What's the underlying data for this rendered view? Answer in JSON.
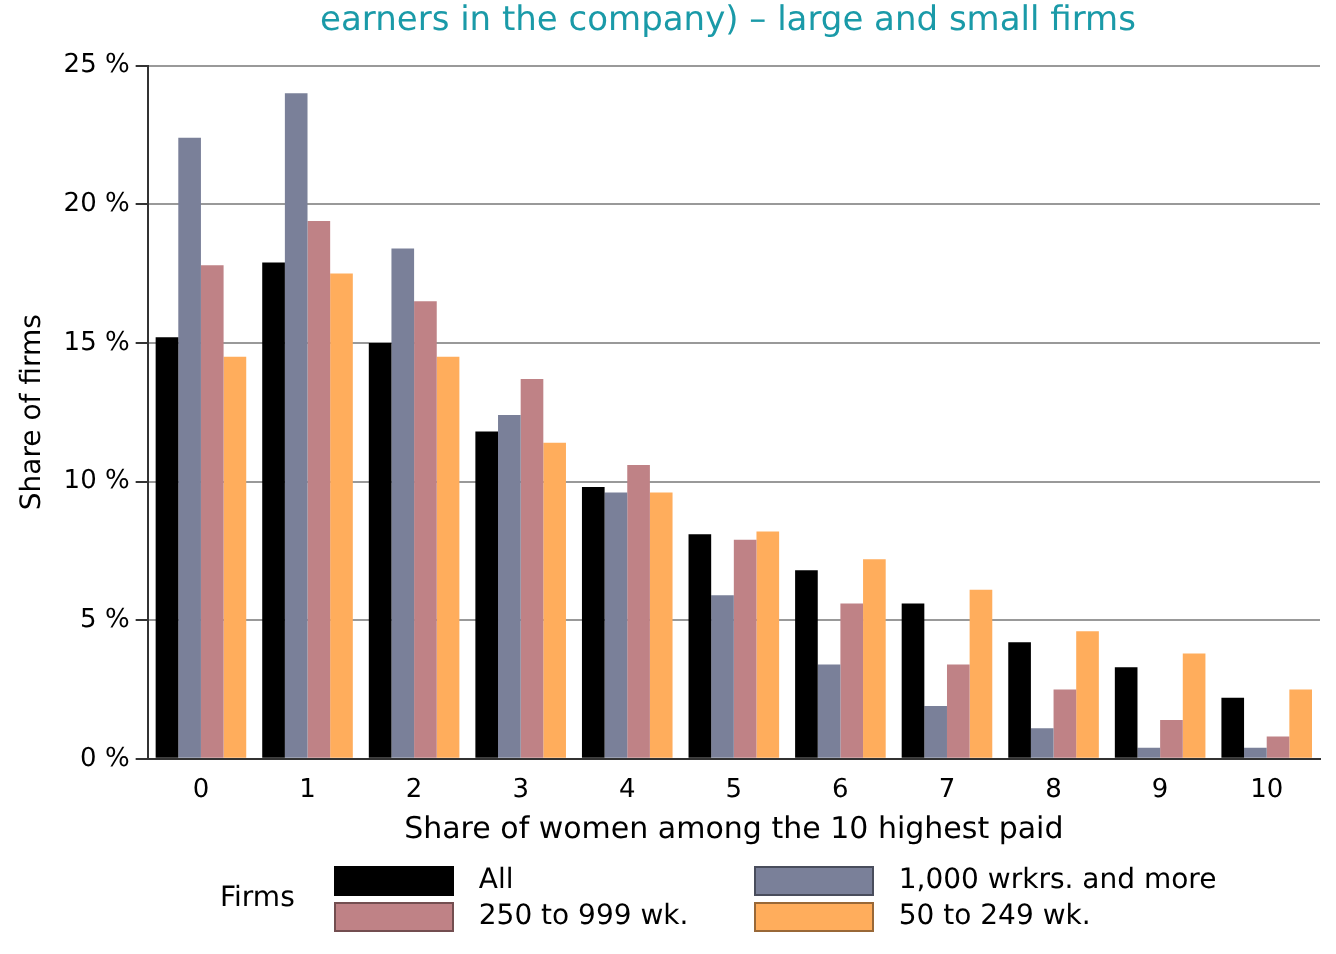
{
  "chart_data": {
    "type": "bar",
    "title": "earners in the company) – large and small firms",
    "xlabel": "Share of women among the 10 highest paid",
    "ylabel": "Share of firms",
    "legend_title": "Firms",
    "categories": [
      "0",
      "1",
      "2",
      "3",
      "4",
      "5",
      "6",
      "7",
      "8",
      "9",
      "10"
    ],
    "series": [
      {
        "name": "All",
        "color": "#000000",
        "values": [
          15.2,
          17.9,
          15.0,
          11.8,
          9.8,
          8.1,
          6.8,
          5.6,
          4.2,
          3.3,
          2.2
        ]
      },
      {
        "name": "1,000 wrkrs. and more",
        "color": "#7a8099",
        "values": [
          22.4,
          24.0,
          18.4,
          12.4,
          9.6,
          5.9,
          3.4,
          1.9,
          1.1,
          0.4,
          0.4
        ]
      },
      {
        "name": "250 to 999 wk.",
        "color": "#bf8286",
        "values": [
          17.8,
          19.4,
          16.5,
          13.7,
          10.6,
          7.9,
          5.6,
          3.4,
          2.5,
          1.4,
          0.8
        ]
      },
      {
        "name": "50 to 249 wk.",
        "color": "#ffad5c",
        "values": [
          14.5,
          17.5,
          14.5,
          11.4,
          9.6,
          8.2,
          7.2,
          6.1,
          4.6,
          3.8,
          2.5
        ]
      }
    ],
    "ylim": [
      0,
      25
    ],
    "yticks": [
      {
        "value": 0,
        "label": "0 %"
      },
      {
        "value": 5,
        "label": "5 %"
      },
      {
        "value": 10,
        "label": "10 %"
      },
      {
        "value": 15,
        "label": "15 %"
      },
      {
        "value": 20,
        "label": "20 %"
      },
      {
        "value": 25,
        "label": "25 %"
      }
    ],
    "grid": "y",
    "legend": "bottom"
  }
}
